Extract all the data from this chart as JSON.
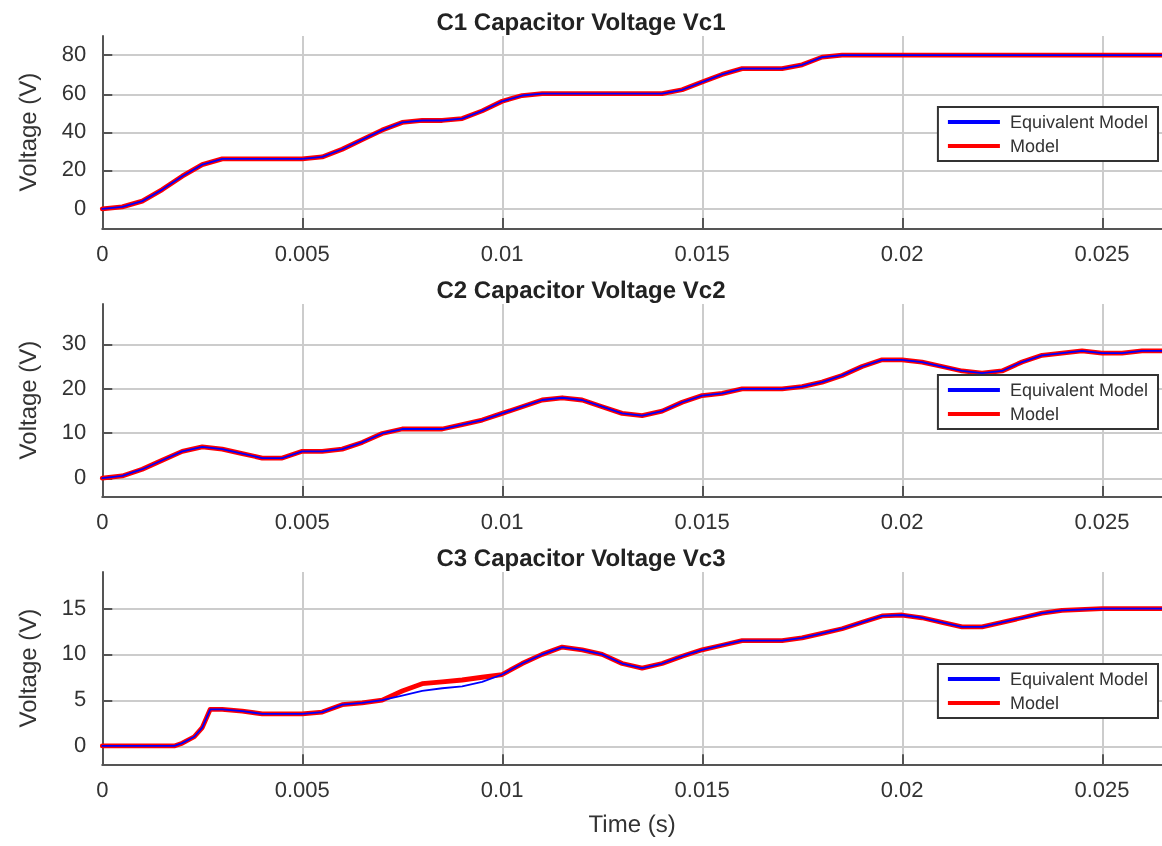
{
  "chart_data": [
    {
      "type": "line",
      "title": "C1 Capacitor Voltage Vc1",
      "ylabel": "Voltage (V)",
      "xlim": [
        0,
        0.0265
      ],
      "xticks": [
        0,
        0.005,
        0.01,
        0.015,
        0.02,
        0.025
      ],
      "ylim": [
        -10,
        90
      ],
      "yticks": [
        0,
        20,
        40,
        60,
        80
      ],
      "grid": true,
      "legend": "right",
      "line_style": "solid",
      "x": [
        0,
        0.0005,
        0.001,
        0.0015,
        0.002,
        0.0025,
        0.003,
        0.004,
        0.005,
        0.0055,
        0.006,
        0.0065,
        0.007,
        0.0075,
        0.008,
        0.0085,
        0.009,
        0.0095,
        0.01,
        0.0105,
        0.011,
        0.012,
        0.013,
        0.014,
        0.0145,
        0.015,
        0.0155,
        0.016,
        0.0165,
        0.017,
        0.0175,
        0.018,
        0.0185,
        0.02,
        0.0265
      ],
      "series": [
        {
          "name": "Equivalent Model",
          "color": "#0000ff",
          "values": [
            0,
            1,
            4,
            10,
            17,
            23,
            26,
            26,
            26,
            27,
            31,
            36,
            41,
            45,
            46,
            46,
            47,
            51,
            56,
            59,
            60,
            60,
            60,
            60,
            62,
            66,
            70,
            73,
            73,
            73,
            75,
            79,
            80,
            80,
            80
          ]
        },
        {
          "name": "Model",
          "color": "#ff0000",
          "values": [
            0,
            1,
            4,
            10,
            17,
            23,
            26,
            26,
            26,
            27,
            31,
            36,
            41,
            45,
            46,
            46,
            47,
            51,
            56,
            59,
            60,
            60,
            60,
            60,
            62,
            66,
            70,
            73,
            73,
            73,
            75,
            79,
            80,
            80,
            80
          ]
        }
      ]
    },
    {
      "type": "line",
      "title": "C2 Capacitor Voltage Vc2",
      "ylabel": "Voltage (V)",
      "xlim": [
        0,
        0.0265
      ],
      "xticks": [
        0,
        0.005,
        0.01,
        0.015,
        0.02,
        0.025
      ],
      "ylim": [
        -4,
        39
      ],
      "yticks": [
        0,
        10,
        20,
        30
      ],
      "grid": true,
      "legend": "right",
      "line_style": "solid",
      "x": [
        0,
        0.0005,
        0.001,
        0.0015,
        0.002,
        0.0025,
        0.003,
        0.0035,
        0.004,
        0.0045,
        0.005,
        0.0055,
        0.006,
        0.0065,
        0.007,
        0.0075,
        0.008,
        0.0085,
        0.009,
        0.0095,
        0.01,
        0.0105,
        0.011,
        0.0115,
        0.012,
        0.0125,
        0.013,
        0.0135,
        0.014,
        0.0145,
        0.015,
        0.0155,
        0.016,
        0.0165,
        0.017,
        0.0175,
        0.018,
        0.0185,
        0.019,
        0.0195,
        0.02,
        0.0205,
        0.021,
        0.0215,
        0.022,
        0.0225,
        0.023,
        0.0235,
        0.024,
        0.0245,
        0.025,
        0.0255,
        0.026,
        0.0265
      ],
      "series": [
        {
          "name": "Equivalent Model",
          "color": "#0000ff",
          "values": [
            0,
            0.5,
            2,
            4,
            6,
            7,
            6.5,
            5.5,
            4.5,
            4.5,
            6,
            6,
            6.5,
            8,
            10,
            11,
            11,
            11,
            12,
            13,
            14.5,
            16,
            17.5,
            18,
            17.5,
            16,
            14.5,
            14,
            15,
            17,
            18.5,
            19,
            20,
            20,
            20,
            20.5,
            21.5,
            23,
            25,
            26.5,
            26.5,
            26,
            25,
            24,
            23.5,
            24,
            26,
            27.5,
            28,
            28.5,
            28,
            28,
            28.5,
            28.5
          ]
        },
        {
          "name": "Model",
          "color": "#ff0000",
          "values": [
            0,
            0.5,
            2,
            4,
            6,
            7,
            6.5,
            5.5,
            4.5,
            4.5,
            6,
            6,
            6.5,
            8,
            10,
            11,
            11,
            11,
            12,
            13,
            14.5,
            16,
            17.5,
            18,
            17.5,
            16,
            14.5,
            14,
            15,
            17,
            18.5,
            19,
            20,
            20,
            20,
            20.5,
            21.5,
            23,
            25,
            26.5,
            26.5,
            26,
            25,
            24,
            23.5,
            24,
            26,
            27.5,
            28,
            28.5,
            28,
            28,
            28.5,
            28.5
          ]
        }
      ]
    },
    {
      "type": "line",
      "title": "C3 Capacitor Voltage Vc3",
      "xlabel": "Time (s)",
      "ylabel": "Voltage (V)",
      "xlim": [
        0,
        0.0265
      ],
      "xticks": [
        0,
        0.005,
        0.01,
        0.015,
        0.02,
        0.025
      ],
      "ylim": [
        -2,
        19
      ],
      "yticks": [
        0,
        5,
        10,
        15
      ],
      "grid": true,
      "legend": "right",
      "line_style": "solid",
      "x": [
        0,
        0.0018,
        0.002,
        0.0023,
        0.0025,
        0.0027,
        0.003,
        0.0035,
        0.004,
        0.005,
        0.0055,
        0.006,
        0.0065,
        0.007,
        0.0075,
        0.008,
        0.0085,
        0.009,
        0.0095,
        0.01,
        0.0105,
        0.011,
        0.0115,
        0.012,
        0.0125,
        0.013,
        0.0135,
        0.014,
        0.0145,
        0.015,
        0.0155,
        0.016,
        0.017,
        0.0175,
        0.018,
        0.0185,
        0.019,
        0.0195,
        0.02,
        0.0205,
        0.021,
        0.0215,
        0.022,
        0.0225,
        0.023,
        0.0235,
        0.024,
        0.025,
        0.0265
      ],
      "series": [
        {
          "name": "Equivalent Model",
          "color": "#0000ff",
          "values": [
            0,
            0,
            0.3,
            1,
            2,
            4,
            4,
            3.8,
            3.5,
            3.5,
            3.7,
            4.5,
            4.7,
            5,
            5.5,
            6,
            6.3,
            6.5,
            7,
            7.8,
            9,
            10,
            10.8,
            10.5,
            10,
            9,
            8.5,
            9,
            9.8,
            10.5,
            11,
            11.5,
            11.5,
            11.8,
            12.3,
            12.8,
            13.5,
            14.2,
            14.3,
            14,
            13.5,
            13,
            13,
            13.5,
            14,
            14.5,
            14.8,
            15,
            15
          ]
        },
        {
          "name": "Model",
          "color": "#ff0000",
          "values": [
            0,
            0,
            0.3,
            1,
            2,
            4,
            4,
            3.8,
            3.5,
            3.5,
            3.7,
            4.5,
            4.7,
            5,
            6,
            6.8,
            7,
            7.2,
            7.5,
            7.8,
            9,
            10,
            10.8,
            10.5,
            10,
            9,
            8.5,
            9,
            9.8,
            10.5,
            11,
            11.5,
            11.5,
            11.8,
            12.3,
            12.8,
            13.5,
            14.2,
            14.3,
            14,
            13.5,
            13,
            13,
            13.5,
            14,
            14.5,
            14.8,
            15,
            15
          ]
        }
      ]
    }
  ]
}
